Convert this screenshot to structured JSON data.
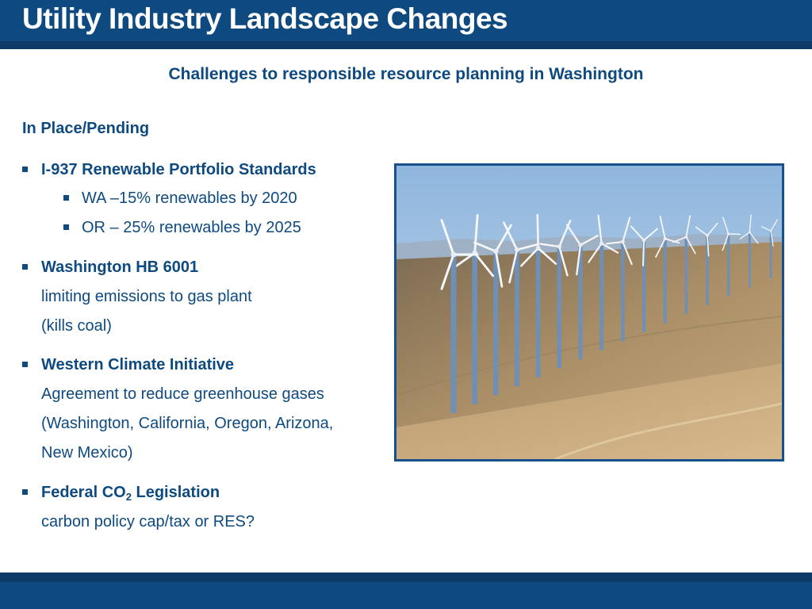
{
  "slide": {
    "title": "Utility Industry Landscape Changes",
    "subtitle": "Challenges to responsible resource planning in Washington",
    "section_heading": "In Place/Pending"
  },
  "bullets": [
    {
      "heading": "I-937 Renewable Portfolio Standards",
      "sub_items": [
        "WA –15% renewables by 2020",
        "OR – 25% renewables by 2025"
      ]
    },
    {
      "heading": "Washington HB 6001",
      "lines": [
        "limiting emissions to gas plant",
        "(kills coal)"
      ]
    },
    {
      "heading": "Western Climate Initiative",
      "lines": [
        "Agreement to reduce greenhouse gases",
        "(Washington, California, Oregon, Arizona,",
        "New Mexico)"
      ]
    },
    {
      "heading_prefix": "Federal CO",
      "heading_subscript": "2",
      "heading_suffix": " Legislation",
      "lines": [
        "carbon policy cap/tax or RES?"
      ]
    }
  ],
  "colors": {
    "brand_blue": "#0e4a80",
    "dark_blue": "#0b3a66"
  }
}
